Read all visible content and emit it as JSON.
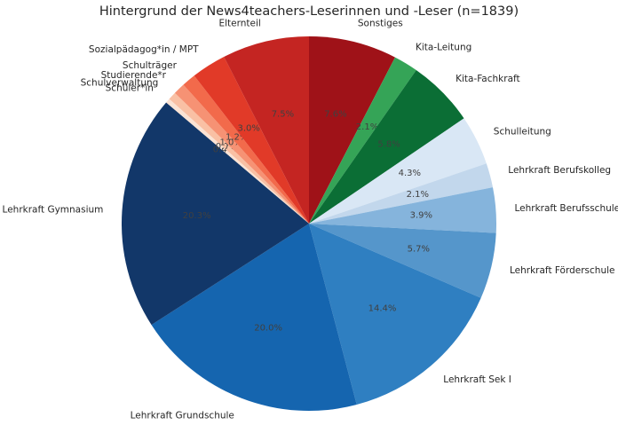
{
  "chart_data": {
    "type": "pie",
    "title": "Hintergrund der News4teachers-Leserinnen und -Leser (n=1839)",
    "n_total": 1839,
    "value_unit": "%",
    "slices": [
      {
        "label": "Sonstiges",
        "value": 7.6,
        "color": "#9f1218"
      },
      {
        "label": "Kita-Leitung",
        "value": 2.1,
        "color": "#35a457"
      },
      {
        "label": "Kita-Fachkraft",
        "value": 5.8,
        "color": "#0b6e35"
      },
      {
        "label": "Schulleitung",
        "value": 4.3,
        "color": "#d9e7f5"
      },
      {
        "label": "Lehrkraft Berufskolleg",
        "value": 2.1,
        "color": "#c2d7ec"
      },
      {
        "label": "Lehrkraft Berufsschule",
        "value": 3.9,
        "color": "#85b4dc"
      },
      {
        "label": "Lehrkraft Förderschule",
        "value": 5.7,
        "color": "#5596cb"
      },
      {
        "label": "Lehrkraft Sek I",
        "value": 14.4,
        "color": "#2f7fc1"
      },
      {
        "label": "Lehrkraft Grundschule",
        "value": 20.0,
        "color": "#1565af"
      },
      {
        "label": "Lehrkraft Gymnasium",
        "value": 20.3,
        "color": "#123769"
      },
      {
        "label": "Schüler*in",
        "value": 0.4,
        "color": "#fbe3d4"
      },
      {
        "label": "Schulverwaltung",
        "value": 0.7,
        "color": "#f9c0a4"
      },
      {
        "label": "Studierende*r",
        "value": 1.0,
        "color": "#f69274"
      },
      {
        "label": "Schulträger",
        "value": 1.2,
        "color": "#f26a4b"
      },
      {
        "label": "Sozialpädagog*in / MPT",
        "value": 3.0,
        "color": "#e13a28"
      },
      {
        "label": "Elternteil",
        "value": 7.5,
        "color": "#c42522"
      }
    ],
    "layout": {
      "start_angle_deg": 0,
      "direction": "clockwise",
      "label_distance": 1.1,
      "pct_distance": 0.6,
      "label_color": "#262626",
      "pct_label_color": "#404040",
      "background": "#ffffff",
      "legend": "none",
      "pct_format": "one_decimal_percent"
    }
  }
}
